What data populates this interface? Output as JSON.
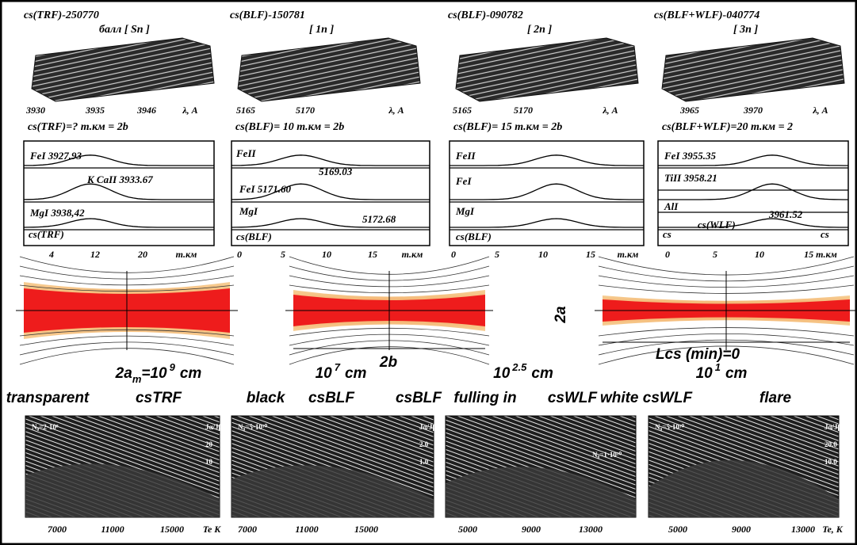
{
  "spectra": [
    {
      "title": "cs(TRF)-250770",
      "subtitle": "балл [ Sn ]",
      "x_labels": [
        "3930",
        "3935",
        "3946",
        "λ, A"
      ]
    },
    {
      "title": "cs(BLF)-150781",
      "subtitle": "[ 1n ]",
      "x_labels": [
        "5165",
        "5170",
        "λ, A"
      ]
    },
    {
      "title": "cs(BLF)-090782",
      "subtitle": "[ 2n ]",
      "x_labels": [
        "5165",
        "5170",
        "λ, A"
      ]
    },
    {
      "title": "cs(BLF+WLF)-040774",
      "subtitle": "[ 3n ]",
      "x_labels": [
        "3965",
        "3970",
        "λ, A"
      ]
    }
  ],
  "profiles": [
    {
      "title": "cs(TRF)=? m.км = 2b",
      "lines": [
        "FeI 3927.93",
        "K CaII 3933.67",
        "MgI 3938,42",
        "cs(TRF)"
      ],
      "x_labels": [
        "4",
        "12",
        "20",
        "m.км"
      ]
    },
    {
      "title": "cs(BLF)= 10 m.км = 2b",
      "lines": [
        "FeII",
        "5169.03",
        "FeI 5171.60",
        "MgI",
        "5172.68",
        "cs(BLF)"
      ],
      "x_labels": [
        "0",
        "5",
        "10",
        "15",
        "m.км"
      ]
    },
    {
      "title": "cs(BLF)= 15 m.км = 2b",
      "lines": [
        "FeII",
        "FeI",
        "MgI",
        "cs(BLF)"
      ],
      "x_labels": [
        "0",
        "5",
        "10",
        "15",
        "m.км"
      ]
    },
    {
      "title": "cs(BLF+WLF)=20 m.км = 2",
      "lines": [
        "FeI 3955.35",
        "TiII 3958.21",
        "AlI",
        "3961.52",
        "cs(WLF)",
        "cs",
        "cs"
      ],
      "x_labels": [
        "0",
        "5",
        "10",
        "15 m.км"
      ]
    }
  ],
  "diagram": {
    "thickness": "2a",
    "length": "2b",
    "min_length": "Lcs (min)=0"
  },
  "scales": [
    {
      "base": "2a",
      "sub": "m",
      "mid": "=10",
      "exp": "9",
      "unit": "cm"
    },
    {
      "base": "10",
      "exp": "7",
      "unit": "cm"
    },
    {
      "base": "10",
      "exp": "2.5",
      "unit": "cm"
    },
    {
      "base": "10",
      "exp": "1",
      "unit": "cm"
    }
  ],
  "states": [
    "transparent",
    "csTRF",
    "black",
    "csBLF",
    "csBLF",
    "fulling in",
    "csWLF",
    "white csWLF",
    "flare"
  ],
  "models": [
    {
      "density": "N₀=2·10⁸",
      "y_labels": [
        "Jα/Jβ",
        "20",
        "10"
      ],
      "x_labels": [
        "7000",
        "11000",
        "15000",
        "Te K"
      ]
    },
    {
      "density": "N₀=5·10¹⁰",
      "y_labels": [
        "Jα/Jβ",
        "2.0",
        "1.0"
      ],
      "x_labels": [
        "7000",
        "11000",
        "15000"
      ]
    },
    {
      "density": "N₀=1·10¹⁰",
      "y_labels": [],
      "x_labels": [
        "5000",
        "9000",
        "13000"
      ]
    },
    {
      "density": "N₀=5·10¹⁰",
      "y_labels": [
        "Jα/Jβ",
        "20.0",
        "10.0"
      ],
      "x_labels": [
        "5000",
        "9000",
        "13000",
        "Te, K"
      ]
    }
  ]
}
